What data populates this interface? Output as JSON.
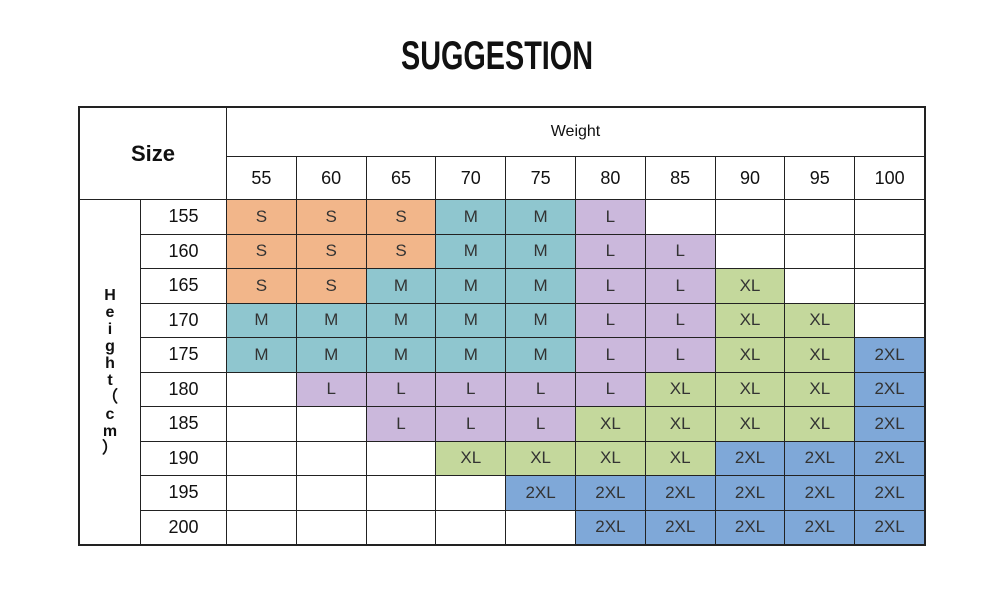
{
  "title": "SUGGESTION",
  "table": {
    "corner_label": "Size",
    "weight_label": "Weight",
    "height_label": [
      "H",
      "e",
      "i",
      "g",
      "h",
      "t",
      "（",
      "c",
      "m",
      "）"
    ],
    "weights": [
      "55",
      "60",
      "65",
      "70",
      "75",
      "80",
      "85",
      "90",
      "95",
      "100"
    ],
    "heights": [
      "155",
      "160",
      "165",
      "170",
      "175",
      "180",
      "185",
      "190",
      "195",
      "200"
    ],
    "rows": [
      [
        "S",
        "S",
        "S",
        "M",
        "M",
        "L",
        "",
        "",
        "",
        ""
      ],
      [
        "S",
        "S",
        "S",
        "M",
        "M",
        "L",
        "L",
        "",
        "",
        ""
      ],
      [
        "S",
        "S",
        "M",
        "M",
        "M",
        "L",
        "L",
        "XL",
        "",
        ""
      ],
      [
        "M",
        "M",
        "M",
        "M",
        "M",
        "L",
        "L",
        "XL",
        "XL",
        ""
      ],
      [
        "M",
        "M",
        "M",
        "M",
        "M",
        "L",
        "L",
        "XL",
        "XL",
        "2XL"
      ],
      [
        "",
        "L",
        "L",
        "L",
        "L",
        "L",
        "XL",
        "XL",
        "XL",
        "2XL"
      ],
      [
        "",
        "",
        "L",
        "L",
        "L",
        "XL",
        "XL",
        "XL",
        "XL",
        "2XL"
      ],
      [
        "",
        "",
        "",
        "XL",
        "XL",
        "XL",
        "XL",
        "2XL",
        "2XL",
        "2XL"
      ],
      [
        "",
        "",
        "",
        "",
        "2XL",
        "2XL",
        "2XL",
        "2XL",
        "2XL",
        "2XL"
      ],
      [
        "",
        "",
        "",
        "",
        "",
        "2XL",
        "2XL",
        "2XL",
        "2XL",
        "2XL"
      ]
    ]
  },
  "size_colors": {
    "S": "#f2b68a",
    "M": "#8fc6cf",
    "L": "#cbb8dc",
    "XL": "#c4d89c",
    "2XL": "#7fa8d8"
  }
}
